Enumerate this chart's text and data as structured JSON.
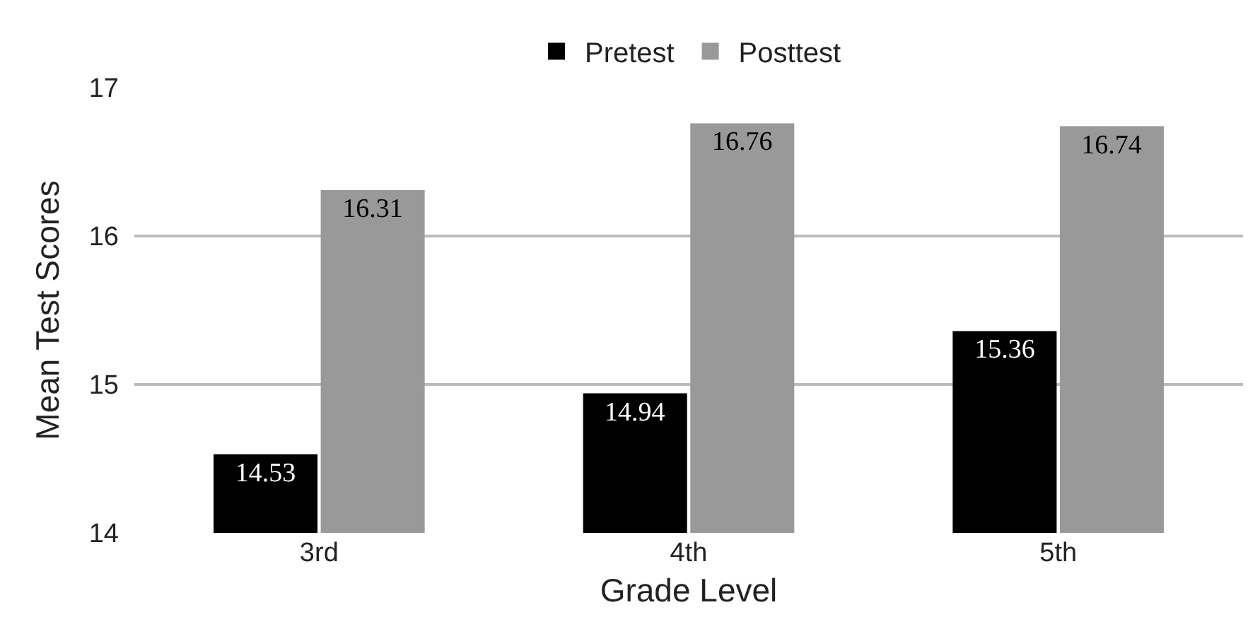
{
  "chart_data": {
    "type": "bar",
    "xlabel": "Grade Level",
    "ylabel": "Mean Test Scores",
    "categories": [
      "3rd",
      "4th",
      "5th"
    ],
    "series": [
      {
        "name": "Pretest",
        "color": "#000000",
        "values": [
          14.53,
          14.94,
          15.36
        ]
      },
      {
        "name": "Posttest",
        "color": "#999999",
        "values": [
          16.31,
          16.76,
          16.74
        ]
      }
    ],
    "ylim": [
      14,
      17
    ],
    "yticks": [
      14,
      15,
      16,
      17
    ],
    "grid": "y",
    "legend": "top",
    "data_labels": true
  }
}
